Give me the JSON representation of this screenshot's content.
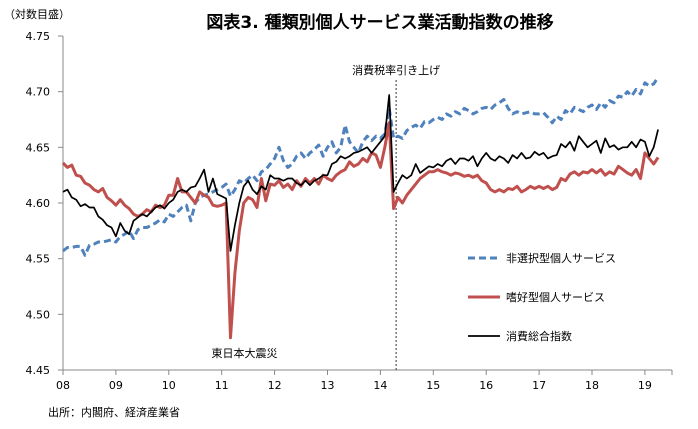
{
  "chart_data": {
    "type": "line",
    "title": "図表3.  種類別個人サービス業活動指数の推移",
    "ylabel": "（対数目盛）",
    "xlabel": "",
    "ylim": [
      4.45,
      4.75
    ],
    "yticks": [
      "4.45",
      "4.50",
      "4.55",
      "4.60",
      "4.65",
      "4.70",
      "4.75"
    ],
    "ytick_values": [
      4.45,
      4.5,
      4.55,
      4.6,
      4.65,
      4.7,
      4.75
    ],
    "xticks": [
      "08",
      "09",
      "10",
      "11",
      "12",
      "13",
      "14",
      "15",
      "16",
      "17",
      "18",
      "19"
    ],
    "x_start": "2008-01",
    "x_frequency": "monthly",
    "grid": false,
    "legend_position": "right",
    "annotations": [
      {
        "text": "消費税率引き上げ",
        "month_index": 75
      },
      {
        "text": "東日本大震災",
        "month_index": 38
      }
    ],
    "source": "出所：内閣府、経済産業省",
    "series": [
      {
        "name": "非選択型個人サービス",
        "color": "#4F81BD",
        "style": "dashed",
        "values": [
          4.557,
          4.56,
          4.56,
          4.561,
          4.561,
          4.553,
          4.562,
          4.563,
          4.565,
          4.565,
          4.566,
          4.567,
          4.565,
          4.57,
          4.572,
          4.575,
          4.568,
          4.576,
          4.578,
          4.578,
          4.58,
          4.582,
          4.585,
          4.583,
          4.59,
          4.588,
          4.592,
          4.596,
          4.598,
          4.584,
          4.6,
          4.605,
          4.607,
          4.608,
          4.61,
          4.612,
          4.614,
          4.617,
          4.606,
          4.612,
          4.62,
          4.618,
          4.622,
          4.625,
          4.62,
          4.628,
          4.63,
          4.635,
          4.64,
          4.65,
          4.638,
          4.632,
          4.635,
          4.642,
          4.645,
          4.64,
          4.645,
          4.648,
          4.652,
          4.642,
          4.65,
          4.655,
          4.645,
          4.65,
          4.67,
          4.655,
          4.65,
          4.645,
          4.655,
          4.66,
          4.656,
          4.66,
          4.658,
          4.662,
          4.685,
          4.658,
          4.66,
          4.658,
          4.665,
          4.668,
          4.67,
          4.667,
          4.673,
          4.672,
          4.675,
          4.677,
          4.675,
          4.68,
          4.678,
          4.682,
          4.68,
          4.685,
          4.683,
          4.68,
          4.682,
          4.685,
          4.686,
          4.684,
          4.688,
          4.69,
          4.693,
          4.685,
          4.68,
          4.682,
          4.68,
          4.681,
          4.682,
          4.68,
          4.68,
          4.681,
          4.677,
          4.672,
          4.678,
          4.675,
          4.683,
          4.68,
          4.686,
          4.684,
          4.682,
          4.686,
          4.688,
          4.684,
          4.69,
          4.686,
          4.692,
          4.69,
          4.696,
          4.695,
          4.7,
          4.696,
          4.702,
          4.698,
          4.708,
          4.705,
          4.707,
          4.713
        ]
      },
      {
        "name": "嗜好型個人サービス",
        "color": "#C0504D",
        "style": "solid",
        "values": [
          4.636,
          4.632,
          4.634,
          4.625,
          4.624,
          4.618,
          4.616,
          4.612,
          4.61,
          4.613,
          4.605,
          4.602,
          4.598,
          4.603,
          4.598,
          4.595,
          4.59,
          4.588,
          4.59,
          4.594,
          4.592,
          4.598,
          4.596,
          4.598,
          4.607,
          4.607,
          4.622,
          4.61,
          4.61,
          4.605,
          4.6,
          4.61,
          4.607,
          4.605,
          4.598,
          4.597,
          4.598,
          4.6,
          4.479,
          4.537,
          4.575,
          4.6,
          4.605,
          4.603,
          4.596,
          4.622,
          4.602,
          4.617,
          4.616,
          4.62,
          4.614,
          4.617,
          4.612,
          4.62,
          4.615,
          4.622,
          4.618,
          4.622,
          4.617,
          4.625,
          4.622,
          4.62,
          4.625,
          4.628,
          4.63,
          4.637,
          4.633,
          4.635,
          4.64,
          4.637,
          4.645,
          4.643,
          4.632,
          4.65,
          4.672,
          4.595,
          4.605,
          4.6,
          4.607,
          4.612,
          4.617,
          4.622,
          4.625,
          4.628,
          4.628,
          4.63,
          4.628,
          4.627,
          4.625,
          4.627,
          4.626,
          4.624,
          4.625,
          4.623,
          4.625,
          4.62,
          4.618,
          4.612,
          4.61,
          4.612,
          4.61,
          4.613,
          4.612,
          4.615,
          4.61,
          4.612,
          4.615,
          4.613,
          4.615,
          4.613,
          4.615,
          4.612,
          4.614,
          4.622,
          4.62,
          4.626,
          4.628,
          4.625,
          4.628,
          4.627,
          4.63,
          4.627,
          4.63,
          4.625,
          4.628,
          4.626,
          4.633,
          4.63,
          4.627,
          4.625,
          4.63,
          4.622,
          4.645,
          4.64,
          4.635,
          4.641
        ]
      },
      {
        "name": "消費総合指数",
        "color": "#000000",
        "style": "solid",
        "values": [
          4.61,
          4.612,
          4.605,
          4.603,
          4.597,
          4.599,
          4.596,
          4.596,
          4.588,
          4.585,
          4.58,
          4.578,
          4.57,
          4.582,
          4.575,
          4.572,
          4.584,
          4.587,
          4.59,
          4.588,
          4.592,
          4.596,
          4.598,
          4.595,
          4.6,
          4.603,
          4.61,
          4.612,
          4.61,
          4.614,
          4.615,
          4.622,
          4.63,
          4.61,
          4.622,
          4.608,
          4.606,
          4.604,
          4.557,
          4.58,
          4.6,
          4.615,
          4.62,
          4.612,
          4.608,
          4.615,
          4.612,
          4.625,
          4.622,
          4.622,
          4.62,
          4.622,
          4.622,
          4.618,
          4.616,
          4.62,
          4.616,
          4.62,
          4.622,
          4.625,
          4.625,
          4.635,
          4.637,
          4.642,
          4.64,
          4.642,
          4.645,
          4.646,
          4.648,
          4.65,
          4.645,
          4.65,
          4.655,
          4.66,
          4.697,
          4.61,
          4.618,
          4.625,
          4.622,
          4.625,
          4.635,
          4.627,
          4.63,
          4.633,
          4.632,
          4.635,
          4.633,
          4.638,
          4.64,
          4.635,
          4.64,
          4.64,
          4.638,
          4.642,
          4.633,
          4.64,
          4.645,
          4.64,
          4.638,
          4.642,
          4.64,
          4.636,
          4.643,
          4.64,
          4.645,
          4.64,
          4.641,
          4.646,
          4.643,
          4.645,
          4.64,
          4.642,
          4.643,
          4.653,
          4.65,
          4.655,
          4.647,
          4.66,
          4.655,
          4.65,
          4.653,
          4.656,
          4.645,
          4.658,
          4.65,
          4.652,
          4.648,
          4.65,
          4.65,
          4.655,
          4.65,
          4.657,
          4.655,
          4.642,
          4.65,
          4.666
        ]
      }
    ]
  }
}
